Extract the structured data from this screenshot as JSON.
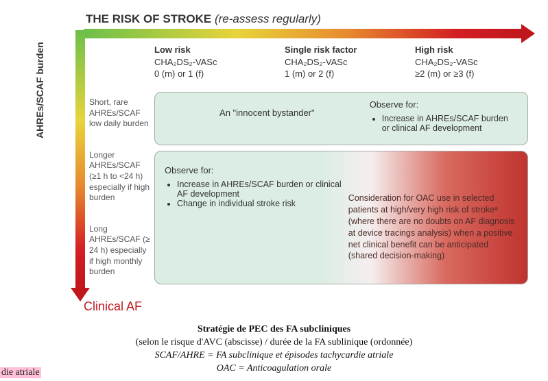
{
  "title": {
    "bold": "THE RISK OF STROKE",
    "ital": "(re-assess regularly)"
  },
  "y_axis_label": "AHREs/SCAF burden",
  "clinical_af": "Clinical AF",
  "columns": [
    {
      "row1": "Low risk",
      "row2": "CHA₂DS₂-VASc",
      "row3": "0 (m) or 1 (f)"
    },
    {
      "row1": "Single risk factor",
      "row2": "CHA₂DS₂-VASc",
      "row3": "1 (m) or 2 (f)"
    },
    {
      "row1": "High risk",
      "row2": "CHA₂DS₂-VASc",
      "row3": "≥2 (m) or ≥3 (f)"
    }
  ],
  "row_labels": [
    "Short, rare AHREs/SCAF low daily burden",
    "Longer AHREs/SCAF (≥1 h to <24 h) especially if high burden",
    "Long AHREs/SCAF (≥ 24 h) especially if high monthly burden"
  ],
  "box_top": {
    "left": "An \"innocent bystander\"",
    "right_head": "Observe for:",
    "right_bullets": [
      "Increase in AHREs/SCAF burden or clinical AF development"
    ]
  },
  "box_bottom": {
    "left_head": "Observe for:",
    "left_bullets": [
      "Increase in AHREs/SCAF burden or clinical AF development",
      "Change in individual stroke risk"
    ],
    "right": "Consideration for OAC use in selected patients at high/very high risk of strokeᵃ (where there are no doubts on AF diagnosis at device tracings analysis) when a positive net clinical benefit can be anticipated (shared decision-making)"
  },
  "caption": {
    "c1": "Stratégie de PEC des FA subcliniques",
    "c2": "(selon le risque d'AVC (abscisse) / durée de la FA sublinique (ordonnée)",
    "c3": "SCAF/AHRE = FA subclinique et épisodes tachycardie atriale",
    "c4": "OAC = Anticoagulation orale"
  },
  "highlight_fragment": "die atriale",
  "colors": {
    "gradient_start": "#6cc04a",
    "gradient_mid1": "#e8d43a",
    "gradient_mid2": "#e78a2e",
    "gradient_end": "#c0171d",
    "box_bg": "#dceee4",
    "box_border": "#a8a8a8",
    "clinical_af": "#c0171d",
    "highlight_bg": "#ffc0d8"
  }
}
